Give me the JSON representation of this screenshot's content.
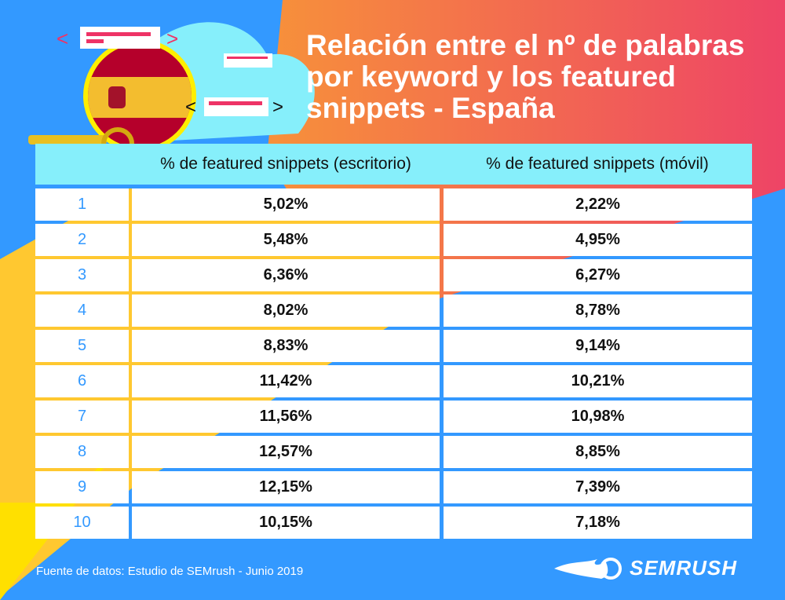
{
  "title": "Relación entre el nº de palabras por keyword y los featured snippets - España",
  "colors": {
    "background": "#3399ff",
    "header": "#86effb",
    "number": "#3399ff",
    "accent_orange": "#f7913a",
    "accent_pink": "#ee4466",
    "accent_yellow": "#ffe000"
  },
  "chart_data": {
    "type": "table",
    "columns": [
      "",
      "% de featured snippets (escritorio)",
      "% de featured snippets (móvil)"
    ],
    "rows": [
      [
        "1",
        "5,02%",
        "2,22%"
      ],
      [
        "2",
        "5,48%",
        "4,95%"
      ],
      [
        "3",
        "6,36%",
        "6,27%"
      ],
      [
        "4",
        "8,02%",
        "8,78%"
      ],
      [
        "5",
        "8,83%",
        "9,14%"
      ],
      [
        "6",
        "11,42%",
        "10,21%"
      ],
      [
        "7",
        "11,56%",
        "10,98%"
      ],
      [
        "8",
        "12,57%",
        "8,85%"
      ],
      [
        "9",
        "12,15%",
        "7,39%"
      ],
      [
        "10",
        "10,15%",
        "7,18%"
      ]
    ]
  },
  "footer": {
    "source": "Fuente de datos: Estudio de SEMrush - Junio 2019",
    "logo": "SEMRUSH"
  }
}
